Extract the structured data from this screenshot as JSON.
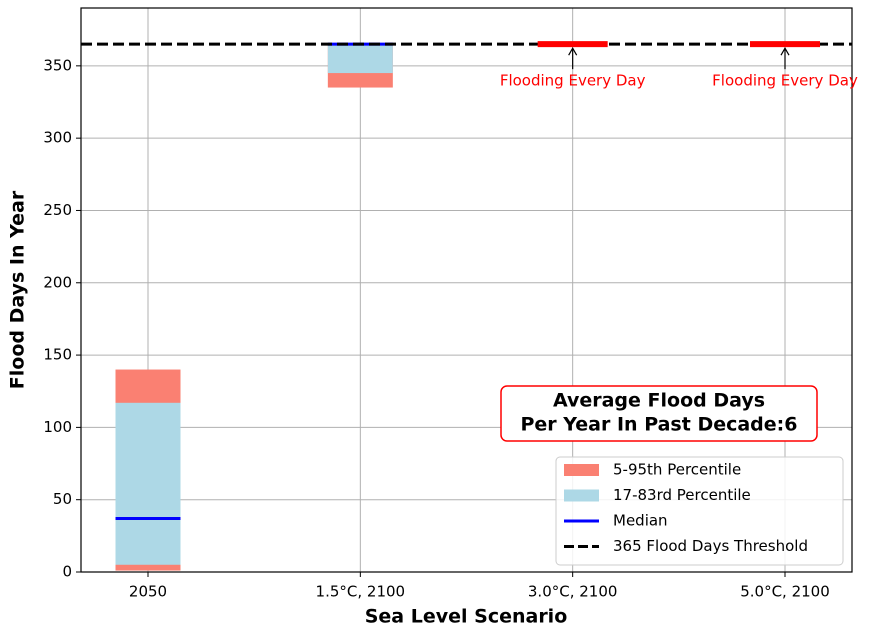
{
  "chart_data": {
    "type": "range-bar",
    "x_label": "Sea Level Scenario",
    "y_label": "Flood Days In Year",
    "categories": [
      "2050",
      "1.5°C, 2100",
      "3.0°C, 2100",
      "5.0°C, 2100"
    ],
    "series": [
      {
        "name": "5-95th Percentile",
        "color": "#fa8072",
        "low": [
          1,
          335,
          null,
          null
        ],
        "high": [
          140,
          365,
          null,
          null
        ]
      },
      {
        "name": "17-83rd Percentile",
        "color": "#add8e6",
        "low": [
          5,
          345,
          null,
          null
        ],
        "high": [
          117,
          365,
          null,
          null
        ]
      },
      {
        "name": "Median",
        "color": "#0000ff",
        "values": [
          37,
          365,
          null,
          null
        ]
      }
    ],
    "threshold": {
      "name": "365 Flood Days Threshold",
      "value": 365,
      "color": "#000000"
    },
    "annotations": [
      {
        "text": "Flooding Every Day",
        "x": "3.0°C, 2100",
        "value": 365,
        "color": "#ff0000"
      },
      {
        "text": "Flooding Every Day",
        "x": "5.0°C, 2100",
        "value": 365,
        "color": "#ff0000"
      }
    ],
    "text_box": [
      "Average Flood Days",
      "Per Year In Past Decade:6"
    ],
    "ylim": [
      0,
      390
    ],
    "yticks": [
      0,
      50,
      100,
      150,
      200,
      250,
      300,
      350
    ],
    "grid": true,
    "legend": "lower right"
  }
}
